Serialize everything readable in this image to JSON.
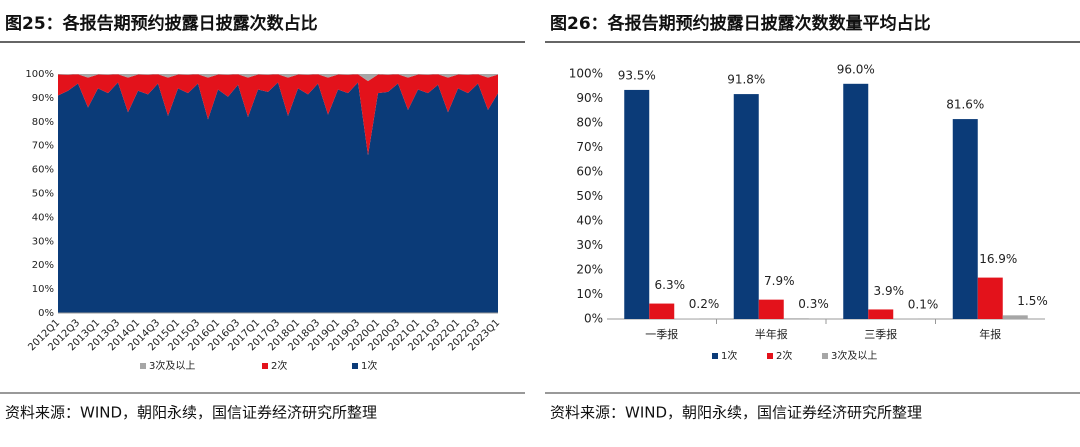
{
  "chart_data": [
    {
      "type": "area",
      "title": "图25：各报告期预约披露日披露次数占比",
      "source": "资料来源：WIND，朝阳永续，国信证券经济研究所整理",
      "categories": [
        "2012Q1",
        null,
        "2012Q3",
        null,
        "2013Q1",
        null,
        "2013Q3",
        null,
        "2014Q1",
        null,
        "2014Q3",
        null,
        "2015Q1",
        null,
        "2015Q3",
        null,
        "2016Q1",
        null,
        "2016Q3",
        null,
        "2017Q1",
        null,
        "2017Q3",
        null,
        "2018Q1",
        null,
        "2018Q3",
        null,
        "2019Q1",
        null,
        "2019Q3",
        null,
        "2020Q1",
        null,
        "2020Q3",
        null,
        "2021Q1",
        null,
        "2021Q3",
        null,
        "2022Q1",
        null,
        "2022Q3",
        null,
        "2023Q1"
      ],
      "series": [
        {
          "name": "3次及以上",
          "color": "#a6a6a6",
          "values": [
            0.2,
            0.3,
            0.1,
            1.5,
            0.2,
            0.3,
            0.1,
            1.5,
            0.2,
            0.3,
            0.1,
            1.5,
            0.2,
            0.3,
            0.1,
            1.5,
            0.2,
            0.3,
            0.1,
            1.5,
            0.2,
            0.3,
            0.1,
            1.5,
            0.2,
            0.3,
            0.1,
            1.5,
            0.2,
            0.3,
            0.1,
            3.0,
            0.2,
            0.3,
            0.1,
            1.5,
            0.2,
            0.3,
            0.1,
            1.5,
            0.2,
            0.3,
            0.1,
            1.5,
            0.2
          ]
        },
        {
          "name": "2次",
          "color": "#e3121b",
          "values": [
            8.8,
            6.7,
            3.9,
            12.5,
            5.8,
            7.7,
            3.4,
            14.5,
            6.8,
            8.2,
            3.9,
            16.0,
            5.8,
            7.7,
            3.9,
            17.5,
            6.3,
            9.2,
            4.4,
            16.5,
            6.3,
            7.2,
            3.4,
            16.0,
            5.8,
            8.2,
            3.9,
            15.5,
            6.3,
            7.7,
            3.4,
            31.0,
            7.8,
            7.2,
            3.9,
            13.5,
            6.3,
            7.7,
            4.4,
            14.5,
            5.8,
            7.7,
            3.9,
            13.5,
            7.8
          ]
        },
        {
          "name": "1次",
          "color": "#0b3b78",
          "values": [
            91.0,
            93.0,
            96.0,
            86.0,
            94.0,
            92.0,
            96.5,
            84.0,
            93.0,
            91.5,
            96.0,
            82.5,
            94.0,
            92.0,
            96.0,
            81.0,
            93.5,
            90.5,
            95.5,
            82.0,
            93.5,
            92.5,
            96.5,
            82.5,
            94.0,
            91.5,
            96.0,
            83.0,
            93.5,
            92.0,
            96.5,
            66.0,
            92.0,
            92.5,
            96.0,
            85.0,
            93.5,
            92.0,
            95.5,
            84.0,
            94.0,
            92.0,
            96.0,
            85.0,
            92.0
          ]
        }
      ],
      "ylim": [
        0,
        100
      ],
      "yticks": [
        {
          "value": 0,
          "label": "0%"
        },
        {
          "value": 10,
          "label": "10%"
        },
        {
          "value": 20,
          "label": "20%"
        },
        {
          "value": 30,
          "label": "30%"
        },
        {
          "value": 40,
          "label": "40%"
        },
        {
          "value": 50,
          "label": "50%"
        },
        {
          "value": 60,
          "label": "60%"
        },
        {
          "value": 70,
          "label": "70%"
        },
        {
          "value": 80,
          "label": "80%"
        },
        {
          "value": 90,
          "label": "90%"
        },
        {
          "value": 100,
          "label": "100%"
        }
      ],
      "stacked": true,
      "grid": false
    },
    {
      "type": "bar",
      "title": "图26：各报告期预约披露日披露次数数量平均占比",
      "source": "资料来源：WIND，朝阳永续，国信证券经济研究所整理",
      "categories": [
        "一季报",
        "半年报",
        "三季报",
        "年报"
      ],
      "series": [
        {
          "name": "1次",
          "color": "#0b3b78",
          "values": [
            93.5,
            91.8,
            96.0,
            81.6
          ],
          "value_labels": [
            "93.5%",
            "91.8%",
            "96.0%",
            "81.6%"
          ]
        },
        {
          "name": "2次",
          "color": "#e3121b",
          "values": [
            6.3,
            7.9,
            3.9,
            16.9
          ],
          "value_labels": [
            "6.3%",
            "7.9%",
            "3.9%",
            "16.9%"
          ]
        },
        {
          "name": "3次及以上",
          "color": "#a6a6a6",
          "values": [
            0.2,
            0.3,
            0.1,
            1.5
          ],
          "value_labels": [
            "0.2%",
            "0.3%",
            "0.1%",
            "1.5%"
          ]
        }
      ],
      "ylim": [
        0,
        100
      ],
      "yticks": [
        {
          "value": 0,
          "label": "0%"
        },
        {
          "value": 10,
          "label": "10%"
        },
        {
          "value": 20,
          "label": "20%"
        },
        {
          "value": 30,
          "label": "30%"
        },
        {
          "value": 40,
          "label": "40%"
        },
        {
          "value": 50,
          "label": "50%"
        },
        {
          "value": 60,
          "label": "60%"
        },
        {
          "value": 70,
          "label": "70%"
        },
        {
          "value": 80,
          "label": "80%"
        },
        {
          "value": 90,
          "label": "90%"
        },
        {
          "value": 100,
          "label": "100%"
        }
      ],
      "grid": false
    }
  ]
}
